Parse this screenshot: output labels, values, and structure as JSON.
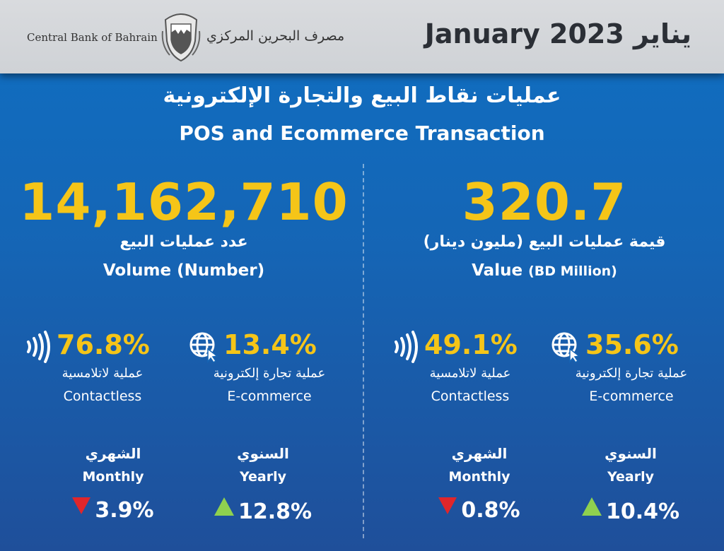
{
  "header": {
    "bank_name_en": "Central Bank of Bahrain",
    "bank_name_ar": "مصرف البحرين المركزي",
    "period": "January 2023 يناير"
  },
  "title": {
    "ar": "عمليات نقاط البيع والتجارة الإلكترونية",
    "en": "POS and Ecommerce Transaction"
  },
  "volume": {
    "value": "14,162,710",
    "label_ar": "عدد عمليات البيع",
    "label_en": "Volume (Number)",
    "contactless": {
      "pct": "76.8%",
      "label_ar": "عملية لاتلامسية",
      "label_en": "Contactless"
    },
    "ecommerce": {
      "pct": "13.4%",
      "label_ar": "عملية تجارة إلكترونية",
      "label_en": "E-commerce"
    },
    "monthly": {
      "label_ar": "الشهري",
      "label_en": "Monthly",
      "value": "3.9%",
      "direction": "down"
    },
    "yearly": {
      "label_ar": "السنوي",
      "label_en": "Yearly",
      "value": "12.8%",
      "direction": "up"
    }
  },
  "value": {
    "value": "320.7",
    "label_ar": "قيمة عمليات البيع (مليون دينار)",
    "label_en_main": "Value",
    "label_en_unit": "(BD Million)",
    "contactless": {
      "pct": "49.1%",
      "label_ar": "عملية لاتلامسية",
      "label_en": "Contactless"
    },
    "ecommerce": {
      "pct": "35.6%",
      "label_ar": "عملية تجارة إلكترونية",
      "label_en": "E-commerce"
    },
    "monthly": {
      "label_ar": "الشهري",
      "label_en": "Monthly",
      "value": "0.8%",
      "direction": "down"
    },
    "yearly": {
      "label_ar": "السنوي",
      "label_en": "Yearly",
      "value": "10.4%",
      "direction": "up"
    }
  },
  "colors": {
    "accent": "#f5c518",
    "up": "#8fd14f",
    "down": "#e0262b"
  }
}
